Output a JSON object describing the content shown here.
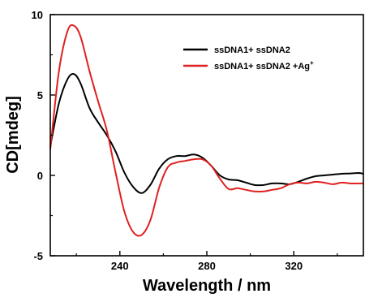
{
  "chart_data": {
    "type": "line",
    "xlabel": "Wavelength / nm",
    "ylabel": "CD[mdeg]",
    "xlim": [
      208,
      352
    ],
    "ylim": [
      -5,
      10
    ],
    "x_ticks": [
      240,
      280,
      320
    ],
    "y_ticks": [
      -5,
      0,
      5,
      10
    ],
    "grid": false,
    "legend_position": "top-right",
    "series": [
      {
        "name": "ssDNA1+ ssDNA2",
        "color": "#000000",
        "x": [
          208,
          212,
          216,
          219,
          222,
          226,
          230,
          234,
          238,
          242,
          246,
          250,
          254,
          258,
          262,
          266,
          270,
          274,
          278,
          282,
          286,
          290,
          294,
          298,
          302,
          306,
          310,
          314,
          318,
          322,
          326,
          330,
          334,
          338,
          342,
          346,
          350,
          352
        ],
        "values": [
          1.8,
          4.5,
          6.0,
          6.3,
          5.7,
          4.2,
          3.3,
          2.5,
          1.5,
          0.2,
          -0.7,
          -1.1,
          -0.6,
          0.4,
          1.0,
          1.2,
          1.2,
          1.3,
          1.1,
          0.6,
          0.0,
          -0.25,
          -0.3,
          -0.45,
          -0.6,
          -0.6,
          -0.5,
          -0.5,
          -0.55,
          -0.4,
          -0.2,
          -0.05,
          0.0,
          0.05,
          0.1,
          0.12,
          0.15,
          0.1
        ]
      },
      {
        "name": "ssDNA1+ ssDNA2 +Ag",
        "name_sup": "+",
        "color": "#e02020",
        "x": [
          208,
          212,
          216,
          219,
          222,
          226,
          230,
          234,
          238,
          242,
          246,
          250,
          254,
          258,
          262,
          266,
          270,
          274,
          278,
          282,
          286,
          290,
          294,
          298,
          302,
          306,
          310,
          314,
          318,
          322,
          326,
          330,
          334,
          338,
          342,
          346,
          350,
          352
        ],
        "values": [
          1.6,
          6.5,
          9.0,
          9.3,
          8.6,
          6.5,
          4.6,
          2.8,
          0.2,
          -2.2,
          -3.5,
          -3.7,
          -2.8,
          -0.8,
          0.5,
          0.8,
          0.9,
          1.0,
          1.0,
          0.6,
          -0.2,
          -0.85,
          -0.8,
          -0.9,
          -1.0,
          -1.0,
          -0.9,
          -0.8,
          -0.55,
          -0.45,
          -0.5,
          -0.4,
          -0.45,
          -0.55,
          -0.45,
          -0.5,
          -0.5,
          -0.5
        ]
      }
    ]
  }
}
